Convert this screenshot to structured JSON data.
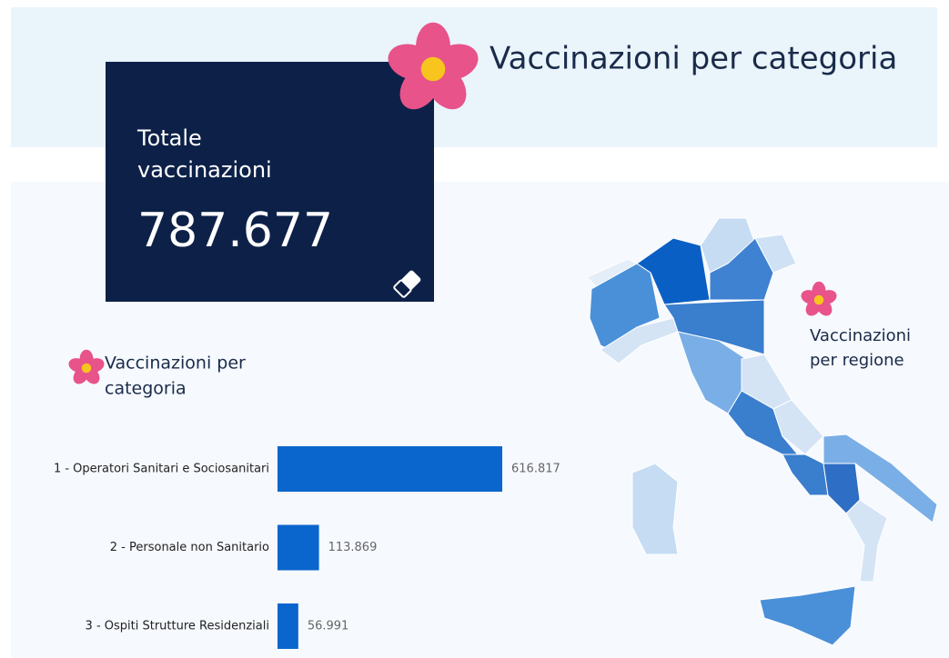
{
  "header": {
    "title": "Vaccinazioni per categoria"
  },
  "kpi": {
    "label_line1": "Totale",
    "label_line2": "vaccinazioni",
    "value": "787.677"
  },
  "chart_data": {
    "type": "bar",
    "orientation": "horizontal",
    "title_line1": "Vaccinazioni per",
    "title_line2": "categoria",
    "categories": [
      "1 - Operatori Sanitari e Sociosanitari",
      "2 - Personale non Sanitario",
      "3 - Ospiti Strutture Residenziali"
    ],
    "values": [
      616817,
      113869,
      56991
    ],
    "value_labels": [
      "616.817",
      "113.869",
      "56.991"
    ],
    "color": "#0a66cc"
  },
  "map": {
    "title_line1": "Vaccinazioni",
    "title_line2": "per regione"
  }
}
